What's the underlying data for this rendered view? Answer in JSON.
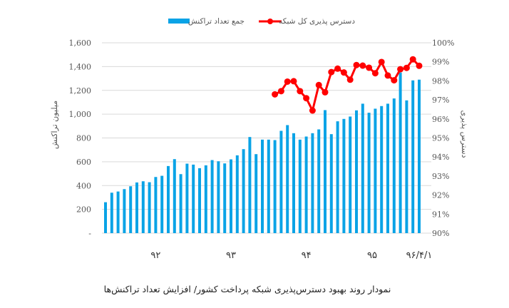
{
  "chart_data": {
    "type": "bar+line",
    "title": "",
    "caption": "نمودار روند بهبود دسترس‌پذیری شبکه پرداخت کشور/ افزایش تعداد تراکنش‌ها",
    "legend": {
      "placement": "top",
      "bar_label": "جمع تعداد تراکنش",
      "line_label": "دسترس پذیری کل شبکه"
    },
    "y_left": {
      "label": "میلیون تراکنش",
      "range": [
        0,
        1600
      ],
      "ticks": [
        "-",
        "200",
        "400",
        "600",
        "800",
        "1,000",
        "1,200",
        "1,400",
        "1,600"
      ]
    },
    "y_right": {
      "label": "دسترس پذیری",
      "range": [
        90,
        100
      ],
      "ticks": [
        "90%",
        "91%",
        "92%",
        "93%",
        "94%",
        "95%",
        "96%",
        "97%",
        "98%",
        "99%",
        "100%"
      ]
    },
    "x_labels": [
      {
        "text": "۹۲",
        "index": 8
      },
      {
        "text": "۹۳",
        "index": 20
      },
      {
        "text": "۹۴",
        "index": 32
      },
      {
        "text": "۹۵",
        "index": 42.5
      },
      {
        "text": "۹۶/۴/۱",
        "index": 50
      }
    ],
    "grid": true,
    "series": [
      {
        "name": "جمع تعداد تراکنش",
        "type": "bar",
        "axis": "left",
        "color": "#0aa3e6",
        "values": [
          260,
          340,
          350,
          370,
          394,
          426,
          436,
          428,
          472,
          482,
          564,
          622,
          496,
          584,
          576,
          546,
          570,
          614,
          604,
          586,
          620,
          654,
          706,
          808,
          664,
          786,
          786,
          782,
          860,
          908,
          840,
          786,
          812,
          840,
          872,
          1034,
          832,
          940,
          960,
          980,
          1032,
          1088,
          1012,
          1046,
          1068,
          1088,
          1132,
          1350,
          1116,
          1284,
          1290
        ]
      },
      {
        "name": "دسترس پذیری کل شبکه",
        "type": "line",
        "axis": "right",
        "color": "#ff0000",
        "start_index": 27,
        "values": [
          97.29,
          97.46,
          97.96,
          97.98,
          97.46,
          97.09,
          96.44,
          97.78,
          97.4,
          98.46,
          98.64,
          98.44,
          98.06,
          98.83,
          98.8,
          98.69,
          98.4,
          98.99,
          98.28,
          98.03,
          98.61,
          98.68,
          99.13,
          98.79
        ]
      }
    ]
  }
}
